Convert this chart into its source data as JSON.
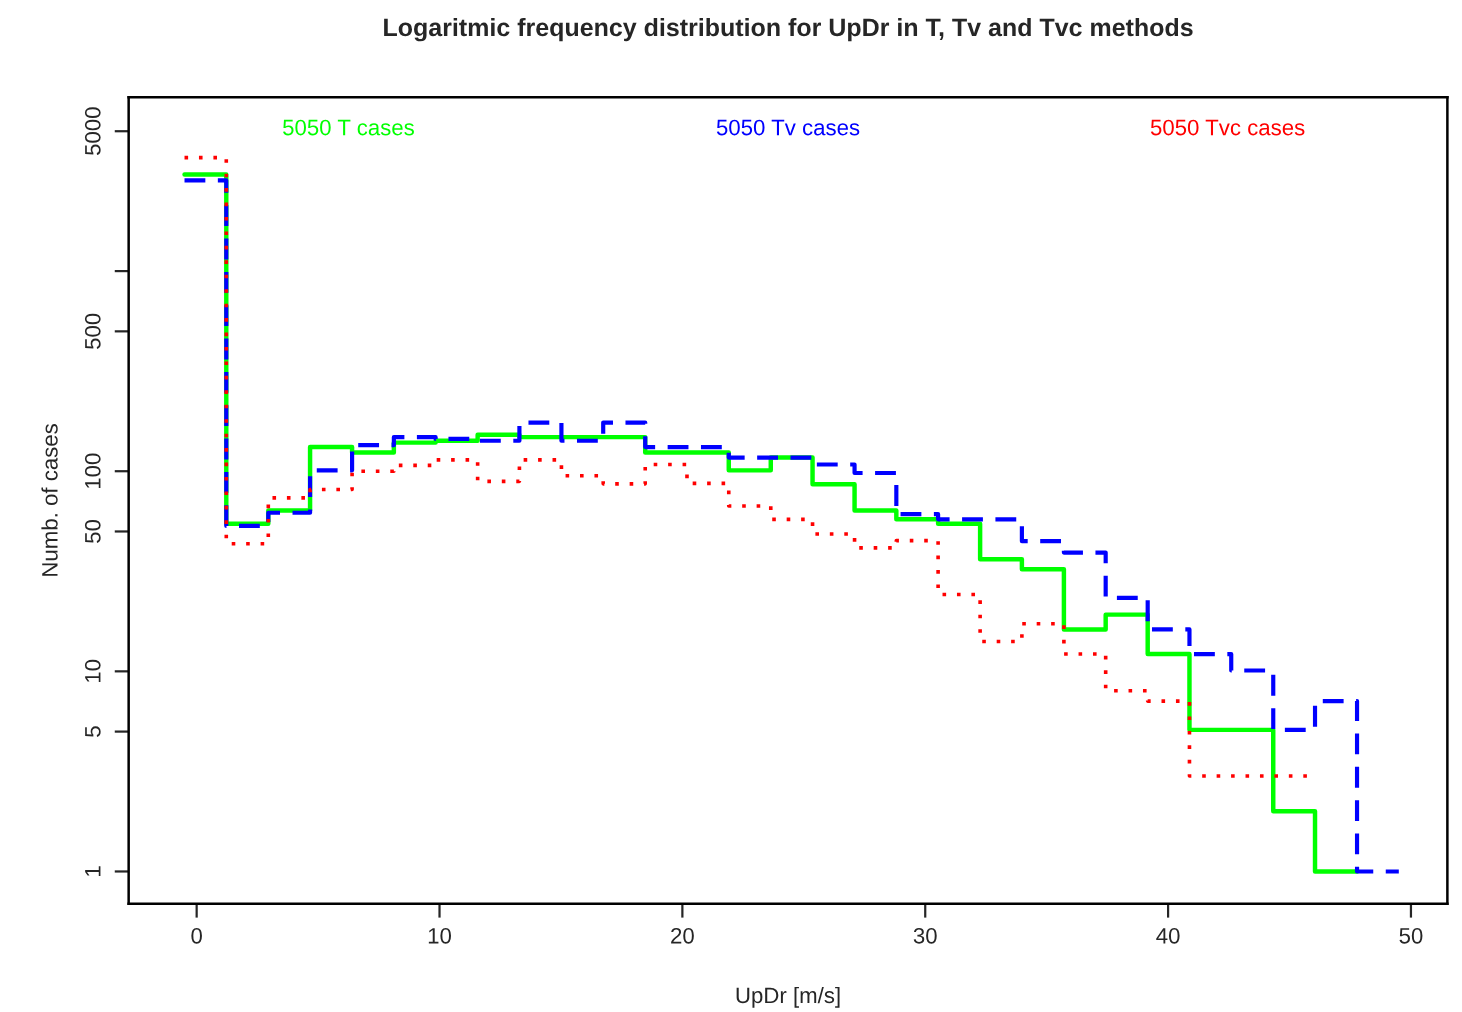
{
  "chart_data": {
    "type": "histogram",
    "title": "Logaritmic frequency distribution for UpDr in T, Tv and Tvc methods",
    "xlabel": "UpDr [m/s]",
    "ylabel": "Numb. of cases",
    "bins": [
      -0.5,
      1.22,
      2.95,
      4.67,
      6.4,
      8.12,
      9.84,
      11.57,
      13.29,
      15.02,
      16.74,
      18.47,
      20.19,
      21.91,
      23.64,
      25.36,
      27.09,
      28.81,
      30.53,
      32.26,
      33.98,
      35.71,
      37.43,
      39.16,
      40.88,
      42.6,
      44.33,
      46.05,
      47.78,
      49.5
    ],
    "series": [
      {
        "name": "5050 T cases",
        "color": "#00ff00",
        "line_style": "solid",
        "bins": [
          -0.5,
          1.22,
          2.95,
          4.67,
          6.4,
          8.12,
          9.84,
          11.57,
          13.29,
          15.02,
          16.74,
          18.47,
          20.19,
          21.91,
          23.64,
          25.36,
          27.09,
          28.81,
          30.53,
          32.26,
          33.98,
          35.71,
          37.43,
          39.16,
          40.88,
          42.6,
          44.33,
          46.05,
          47.78
        ],
        "values": [
          3040,
          54.6,
          63.6,
          132,
          124,
          139,
          142,
          152,
          148,
          148,
          148,
          124,
          124,
          101,
          117,
          86,
          63.6,
          57.5,
          54.6,
          36.3,
          32.4,
          16.2,
          19.2,
          12.2,
          5.1,
          5.1,
          2.0,
          1.0
        ]
      },
      {
        "name": "5050 Tv cases",
        "color": "#0000ff",
        "line_style": "dashed",
        "values": [
          2840,
          53.3,
          62,
          101,
          135,
          148,
          145,
          142,
          175,
          142,
          175,
          132,
          132,
          117,
          117,
          108,
          98,
          61,
          57.5,
          57.5,
          44.7,
          39.2,
          23.3,
          16.2,
          12.2,
          10.1,
          5.1,
          7.1,
          1.0
        ]
      },
      {
        "name": "5050 Tvc cases",
        "color": "#ff0000",
        "line_style": "dotted",
        "bins": [
          -0.5,
          1.22,
          2.95,
          4.67,
          6.4,
          8.12,
          9.84,
          11.57,
          13.29,
          15.02,
          16.74,
          18.47,
          20.19,
          21.91,
          23.64,
          25.36,
          27.09,
          28.81,
          30.53,
          32.26,
          33.98,
          35.71,
          37.43,
          39.16,
          40.88,
          42.6,
          44.33,
          46.05
        ],
        "values": [
          3690,
          43.4,
          73.6,
          81,
          100,
          107,
          114,
          89,
          114,
          95,
          86.5,
          108,
          87,
          67,
          57.5,
          48.6,
          41.4,
          45,
          24.2,
          14.1,
          17.3,
          12.2,
          8.0,
          7.1,
          3.0,
          3.0,
          3.0
        ]
      }
    ],
    "log": "y",
    "xlim": [
      -2.8,
      51.5
    ],
    "ylim": [
      0.69,
      7400
    ],
    "xticks": [
      0,
      10,
      20,
      30,
      40,
      50
    ],
    "yticks": [
      1,
      5,
      10,
      50,
      100,
      500,
      {
        "value": 1000,
        "label": null
      },
      5000
    ],
    "grid": false,
    "legend": "top"
  }
}
